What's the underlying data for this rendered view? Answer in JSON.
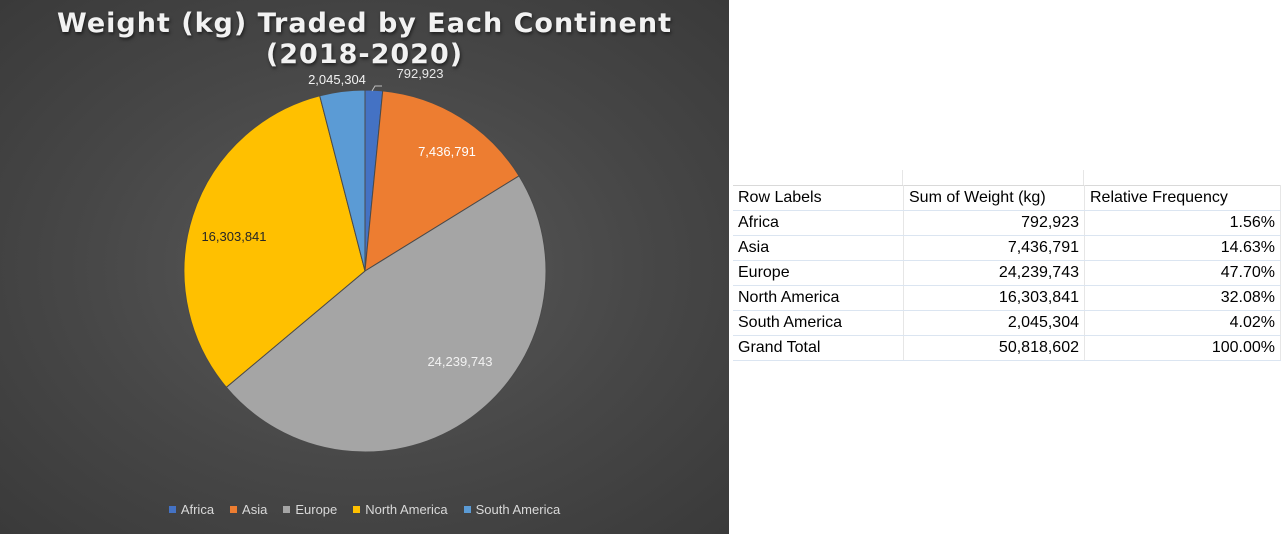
{
  "chart_data": {
    "type": "pie",
    "title": "Weight (kg) Traded by Each Continent (2018-2020)",
    "categories": [
      "Africa",
      "Asia",
      "Europe",
      "North America",
      "South America"
    ],
    "values": [
      792923,
      7436791,
      24239743,
      16303841,
      2045304
    ],
    "data_labels": [
      "792,923",
      "7,436,791",
      "24,239,743",
      "16,303,841",
      "2,045,304"
    ],
    "colors": [
      "#4472c4",
      "#ed7d31",
      "#a5a5a5",
      "#ffc000",
      "#5b9bd5"
    ],
    "label_colors": [
      "#e8e8e8",
      "#ffffff",
      "#f2f2f2",
      "#262626",
      "#f2f2f2"
    ],
    "legend_position": "bottom"
  },
  "table": {
    "headers": [
      "Row Labels",
      "Sum of Weight (kg)",
      "Relative Frequency"
    ],
    "rows": [
      [
        "Africa",
        "792,923",
        "1.56%"
      ],
      [
        "Asia",
        "7,436,791",
        "14.63%"
      ],
      [
        "Europe",
        "24,239,743",
        "47.70%"
      ],
      [
        "North America",
        "16,303,841",
        "32.08%"
      ],
      [
        "South America",
        "2,045,304",
        "4.02%"
      ]
    ],
    "total": [
      "Grand Total",
      "50,818,602",
      "100.00%"
    ]
  }
}
